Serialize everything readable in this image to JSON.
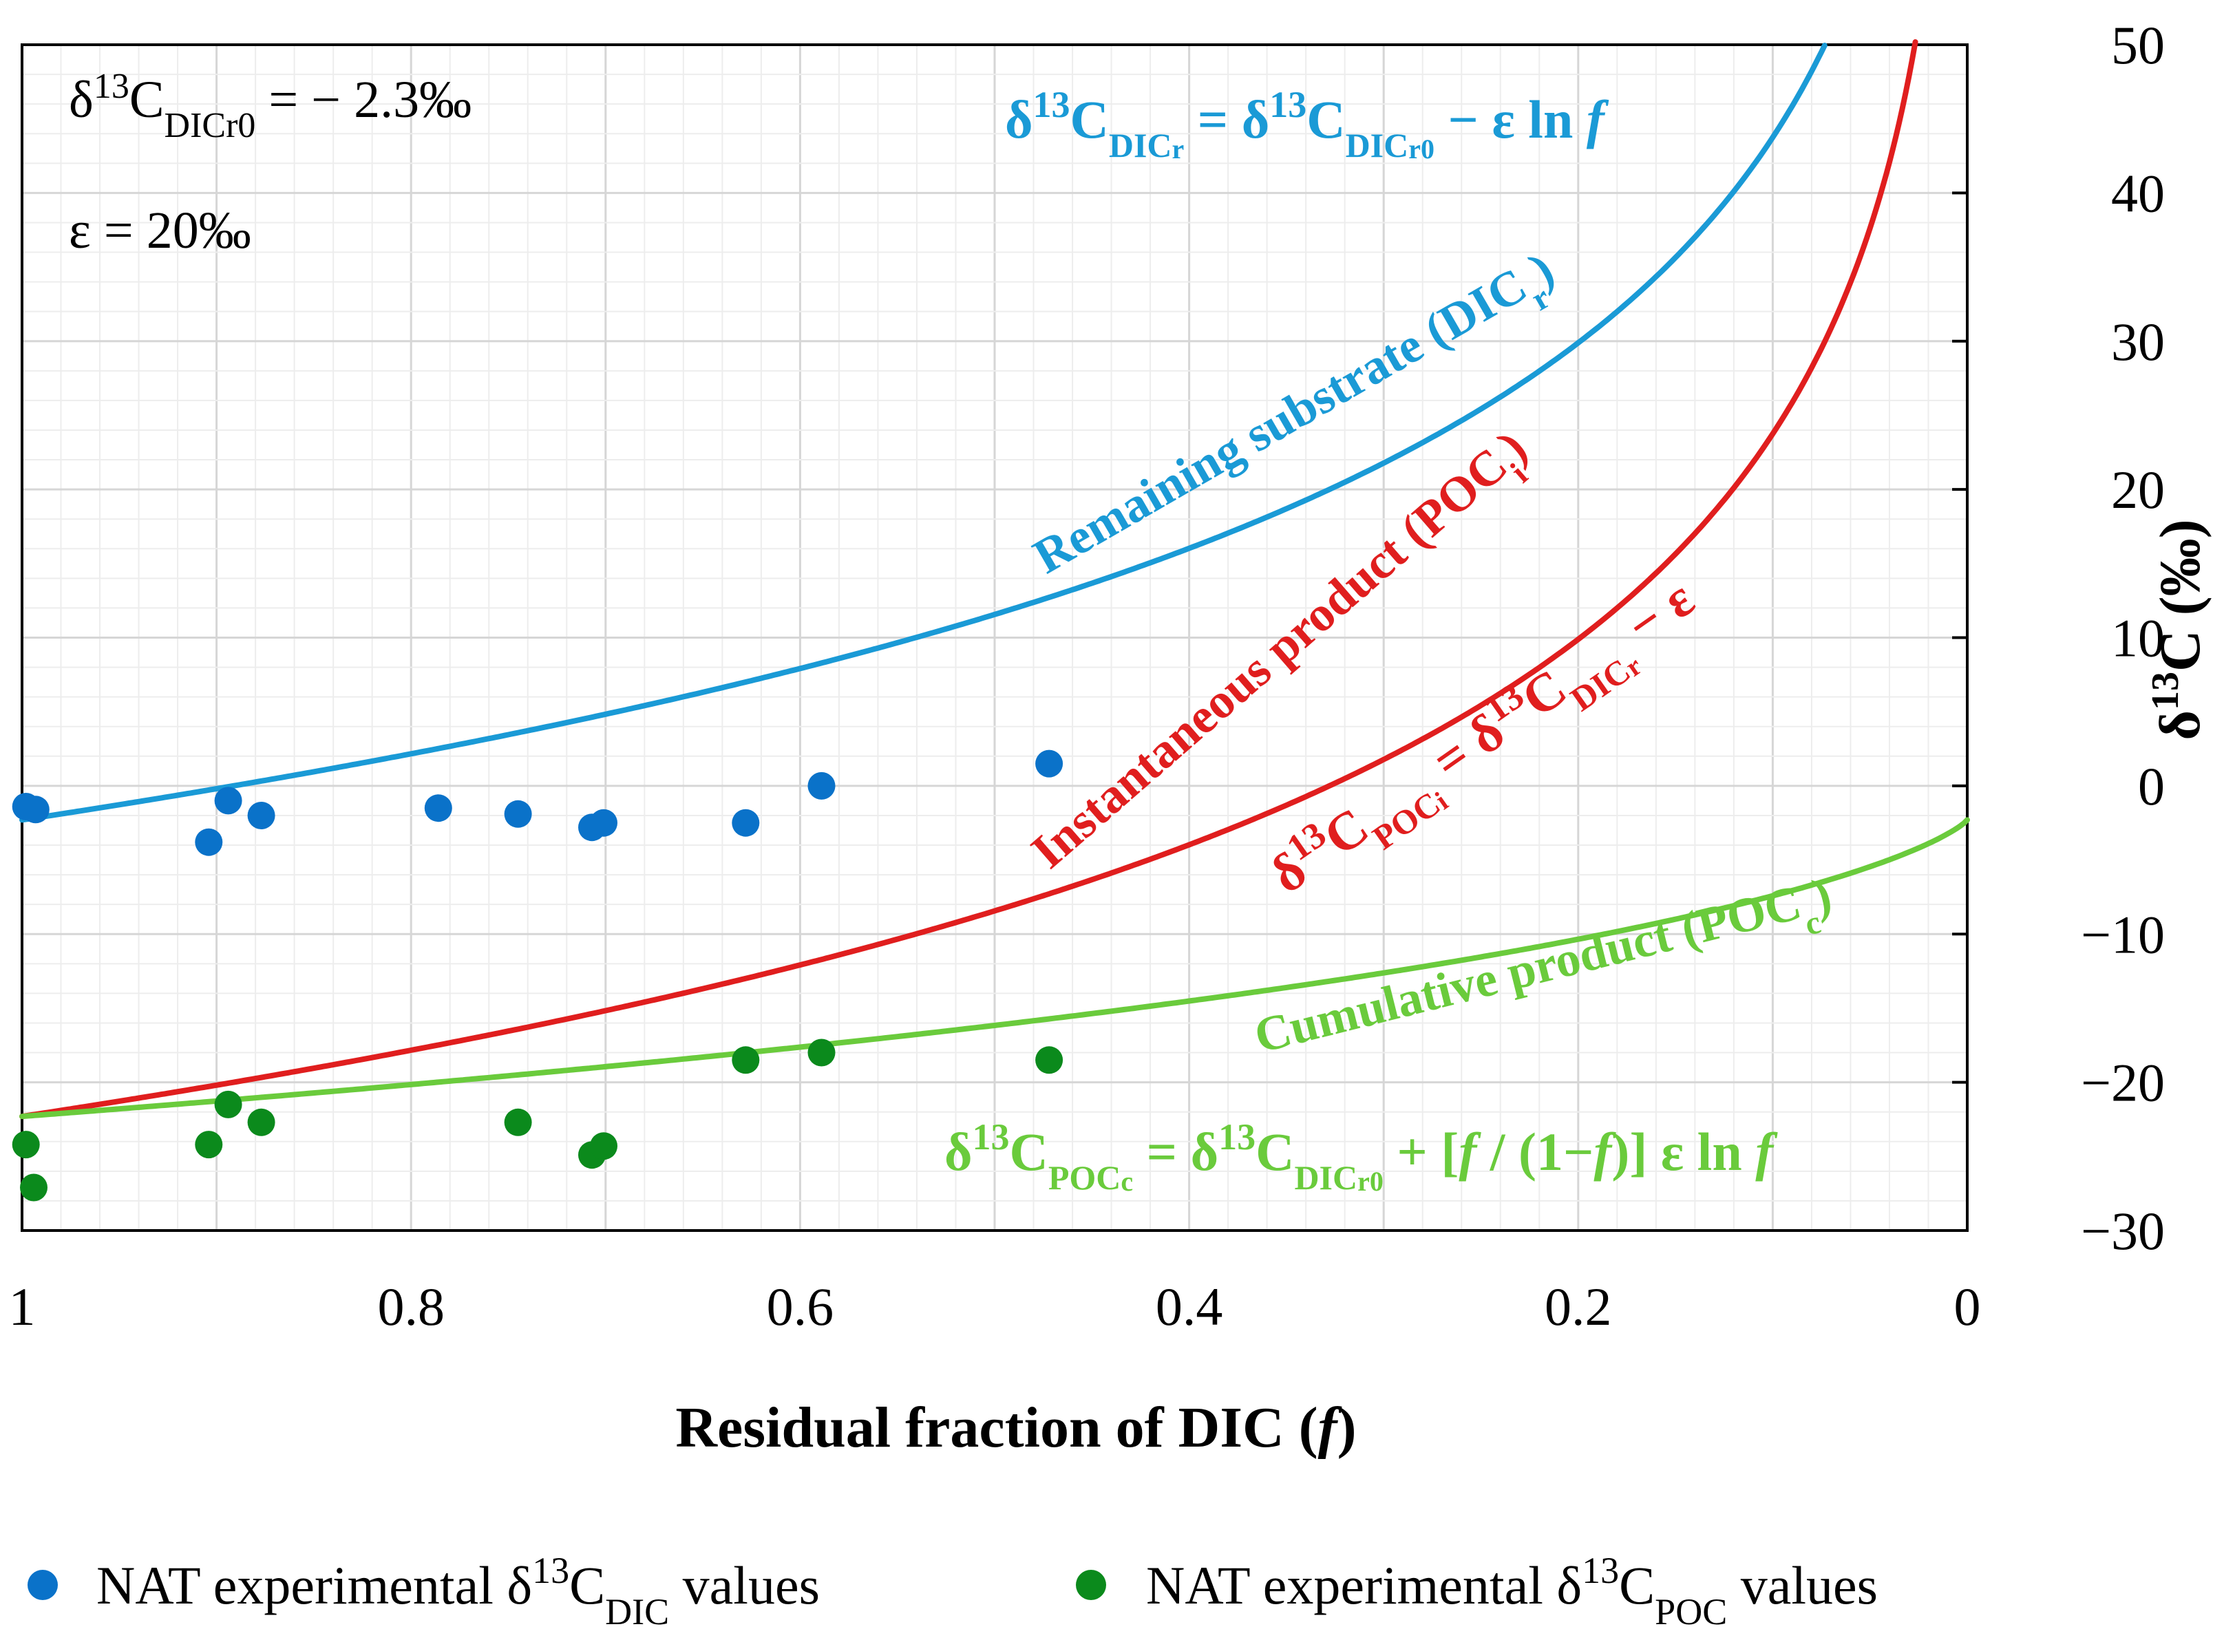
{
  "chart_data": {
    "type": "line",
    "title": "",
    "xlabel": "Residual fraction of DIC (",
    "xlabel_var": "f",
    "xlabel_end": ")",
    "ylabel_prefix": "δ",
    "ylabel_sup": "13",
    "ylabel_suffix": "C (‰)",
    "xlim": [
      1,
      0
    ],
    "ylim": [
      -30,
      50
    ],
    "x_ticks": [
      1,
      0.8,
      0.6,
      0.4,
      0.2,
      0
    ],
    "x_tick_labels": [
      "1",
      "0.8",
      "0.6",
      "0.4",
      "0.2",
      "0"
    ],
    "y_ticks": [
      -30,
      -20,
      -10,
      0,
      10,
      20,
      30,
      40,
      50
    ],
    "y_tick_labels": [
      "−30",
      "−20",
      "−10",
      "0",
      "10",
      "20",
      "30",
      "40",
      "50"
    ],
    "grid": true,
    "params": {
      "d13C_DIC_r0": -2.3,
      "epsilon": 20
    },
    "series": [
      {
        "name": "Remaining substrate (DICr)",
        "color": "#1a9ad6",
        "x": [
          1.0,
          0.9,
          0.8,
          0.7,
          0.6,
          0.5,
          0.4,
          0.3,
          0.2,
          0.15,
          0.1,
          0.08
        ],
        "values": [
          -2.3,
          -0.2,
          2.2,
          4.8,
          7.9,
          11.6,
          16.0,
          21.8,
          29.9,
          35.6,
          43.8,
          48.2
        ]
      },
      {
        "name": "Instantaneous product (POCi)",
        "color": "#e01e1e",
        "x": [
          1.0,
          0.9,
          0.8,
          0.7,
          0.6,
          0.5,
          0.4,
          0.3,
          0.2,
          0.1,
          0.05,
          0.035
        ],
        "values": [
          -22.3,
          -20.2,
          -17.8,
          -15.2,
          -12.1,
          -8.4,
          -4.0,
          1.8,
          9.9,
          23.8,
          37.6,
          44.7
        ]
      },
      {
        "name": "Cumulative product (POCc)",
        "color": "#6acb3c",
        "x": [
          1.0,
          0.9,
          0.8,
          0.7,
          0.6,
          0.5,
          0.4,
          0.3,
          0.2,
          0.1,
          0.05,
          0.0
        ],
        "values": [
          -22.3,
          -21.3,
          -20.2,
          -19.0,
          -17.8,
          -16.3,
          -14.6,
          -12.6,
          -10.0,
          -6.1,
          -3.9,
          -2.3
        ]
      }
    ],
    "scatter": [
      {
        "name": "NAT experimental δ13C_DIC values",
        "color": "#0a72c9",
        "points": [
          [
            0.998,
            -1.4
          ],
          [
            0.993,
            -1.6
          ],
          [
            0.894,
            -1.0
          ],
          [
            0.904,
            -3.8
          ],
          [
            0.877,
            -2.0
          ],
          [
            0.786,
            -1.5
          ],
          [
            0.745,
            -1.9
          ],
          [
            0.707,
            -2.8
          ],
          [
            0.701,
            -2.5
          ],
          [
            0.628,
            -2.5
          ],
          [
            0.589,
            0.0
          ],
          [
            0.472,
            1.5
          ]
        ]
      },
      {
        "name": "NAT experimental δ13C_POC values",
        "color": "#0b8a1c",
        "points": [
          [
            0.998,
            -24.2
          ],
          [
            0.994,
            -27.1
          ],
          [
            0.904,
            -24.2
          ],
          [
            0.894,
            -21.5
          ],
          [
            0.877,
            -22.7
          ],
          [
            0.745,
            -22.7
          ],
          [
            0.707,
            -24.9
          ],
          [
            0.701,
            -24.3
          ],
          [
            0.628,
            -18.5
          ],
          [
            0.589,
            -18.0
          ],
          [
            0.472,
            -18.5
          ]
        ]
      }
    ],
    "annotations": {
      "r0": {
        "d": "δ",
        "sup": "13",
        "c": "C",
        "sub": "DICr0",
        "rest": " = − 2.3‰"
      },
      "eps": "ε = 20‰",
      "eq_dic": {
        "a": "δ",
        "a_sup": "13",
        "a_c": "C",
        "a_sub": "DIC",
        "a_sub2": "r",
        "eq": " = δ",
        "b_sup": "13",
        "b_c": "C",
        "b_sub": "DIC",
        "b_sub2": "r0",
        "tail": " − ε ln ",
        "f": "f"
      },
      "eq_poci": {
        "a": "δ",
        "a_sup": "13",
        "a_c": "C",
        "a_sub": "POC",
        "a_sub2": "i",
        "eq": " = δ",
        "b_sup": "13",
        "b_c": "C",
        "b_sub": "DIC",
        "b_sub2": "r",
        "tail": " − ε"
      },
      "eq_pocc": {
        "a": "δ",
        "a_sup": "13",
        "a_c": "C",
        "a_sub": "POC",
        "a_sub2": "c",
        "eq": " = δ",
        "b_sup": "13",
        "b_c": "C",
        "b_sub": "DIC",
        "b_sub2": "r0",
        "mid": " + [",
        "f1": "f",
        "mid2": " / (1−",
        "f2": "f",
        "mid3": ")] ε ln ",
        "f3": "f"
      },
      "label_dic": {
        "text": "Remaining substrate (DIC",
        "sub": "r",
        "end": ")"
      },
      "label_poci": {
        "text": "Instantaneous product (POC",
        "sub": "i",
        "end": ")"
      },
      "label_pocc": {
        "text": "Cumulative product (POC",
        "sub": "c",
        "end": ")"
      }
    },
    "legend": {
      "placement": "bottom",
      "items": [
        {
          "color": "#0a72c9",
          "prefix": "NAT experimental δ",
          "sup": "13",
          "c": "C",
          "sub": "DIC",
          "suffix": " values"
        },
        {
          "color": "#0b8a1c",
          "prefix": "NAT experimental δ",
          "sup": "13",
          "c": "C",
          "sub": "POC",
          "suffix": " values"
        }
      ]
    }
  }
}
